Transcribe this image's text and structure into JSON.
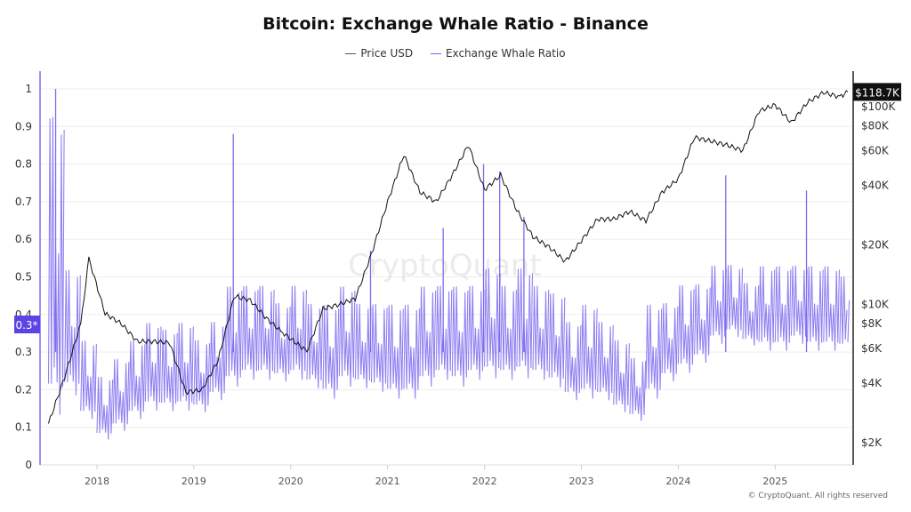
{
  "chart_data": {
    "type": "line",
    "title": "Bitcoin: Exchange Whale Ratio - Binance",
    "legend": [
      "Price USD",
      "Exchange Whale Ratio"
    ],
    "legend_placement": "top-center",
    "grid": true,
    "colors": {
      "price": "#111111",
      "whale": "#7b6cf0",
      "whale_label_bg": "#5b43e6",
      "price_label_bg": "#111111"
    },
    "x_ticks": [
      "2018",
      "2019",
      "2020",
      "2021",
      "2022",
      "2023",
      "2024",
      "2025"
    ],
    "y_left": {
      "ticks": [
        "0",
        "0.1",
        "0.2",
        "0.3",
        "0.4",
        "0.5",
        "0.6",
        "0.7",
        "0.8",
        "0.9",
        "1"
      ],
      "range": [
        0,
        1
      ],
      "current_label": "0.3*"
    },
    "y_right": {
      "scale": "log",
      "ticks": [
        {
          "label": "$2K",
          "value": 2000
        },
        {
          "label": "$4K",
          "value": 4000
        },
        {
          "label": "$6K",
          "value": 6000
        },
        {
          "label": "$8K",
          "value": 8000
        },
        {
          "label": "$10K",
          "value": 10000
        },
        {
          "label": "$20K",
          "value": 20000
        },
        {
          "label": "$40K",
          "value": 40000
        },
        {
          "label": "$60K",
          "value": 60000
        },
        {
          "label": "$80K",
          "value": 80000
        },
        {
          "label": "$100K",
          "value": 100000
        }
      ],
      "current_label": "$118.7K"
    },
    "price_series": {
      "name": "Price USD",
      "points": [
        [
          "2017-07",
          2500
        ],
        [
          "2017-09",
          4300
        ],
        [
          "2017-11",
          8000
        ],
        [
          "2017-12",
          17000
        ],
        [
          "2018-02",
          9000
        ],
        [
          "2018-04",
          8000
        ],
        [
          "2018-06",
          6500
        ],
        [
          "2018-08",
          6500
        ],
        [
          "2018-10",
          6400
        ],
        [
          "2018-12",
          3600
        ],
        [
          "2019-02",
          3700
        ],
        [
          "2019-04",
          5200
        ],
        [
          "2019-06",
          11000
        ],
        [
          "2019-08",
          10500
        ],
        [
          "2019-10",
          8500
        ],
        [
          "2019-12",
          7200
        ],
        [
          "2020-03",
          5800
        ],
        [
          "2020-05",
          9500
        ],
        [
          "2020-07",
          10000
        ],
        [
          "2020-09",
          10700
        ],
        [
          "2020-11",
          18000
        ],
        [
          "2021-01",
          33000
        ],
        [
          "2021-03",
          57000
        ],
        [
          "2021-05",
          37000
        ],
        [
          "2021-07",
          33000
        ],
        [
          "2021-09",
          45000
        ],
        [
          "2021-11",
          64000
        ],
        [
          "2022-01",
          38000
        ],
        [
          "2022-03",
          45000
        ],
        [
          "2022-05",
          30000
        ],
        [
          "2022-07",
          22000
        ],
        [
          "2022-09",
          19500
        ],
        [
          "2022-11",
          16500
        ],
        [
          "2023-01",
          21000
        ],
        [
          "2023-03",
          27000
        ],
        [
          "2023-05",
          27000
        ],
        [
          "2023-07",
          29500
        ],
        [
          "2023-09",
          26500
        ],
        [
          "2023-11",
          37000
        ],
        [
          "2024-01",
          43000
        ],
        [
          "2024-03",
          70000
        ],
        [
          "2024-05",
          67000
        ],
        [
          "2024-07",
          64000
        ],
        [
          "2024-09",
          60000
        ],
        [
          "2024-11",
          95000
        ],
        [
          "2025-01",
          102000
        ],
        [
          "2025-03",
          83000
        ],
        [
          "2025-05",
          105000
        ],
        [
          "2025-07",
          118000
        ],
        [
          "2025-09",
          112000
        ],
        [
          "2025-10",
          118700
        ]
      ]
    },
    "whale_series": {
      "name": "Exchange Whale Ratio",
      "ranges": [
        [
          "2017-07",
          0.05,
          1.0
        ],
        [
          "2017-09",
          0.15,
          0.55
        ],
        [
          "2017-11",
          0.1,
          0.35
        ],
        [
          "2018-01",
          0.05,
          0.25
        ],
        [
          "2018-03",
          0.07,
          0.3
        ],
        [
          "2018-05",
          0.1,
          0.35
        ],
        [
          "2018-07",
          0.12,
          0.4
        ],
        [
          "2018-09",
          0.12,
          0.38
        ],
        [
          "2018-11",
          0.12,
          0.4
        ],
        [
          "2019-01",
          0.12,
          0.35
        ],
        [
          "2019-03",
          0.15,
          0.4
        ],
        [
          "2019-05",
          0.18,
          0.5
        ],
        [
          "2019-07",
          0.2,
          0.5
        ],
        [
          "2019-09",
          0.2,
          0.5
        ],
        [
          "2019-11",
          0.2,
          0.45
        ],
        [
          "2020-01",
          0.2,
          0.5
        ],
        [
          "2020-03",
          0.18,
          0.45
        ],
        [
          "2020-05",
          0.15,
          0.45
        ],
        [
          "2020-07",
          0.18,
          0.5
        ],
        [
          "2020-09",
          0.18,
          0.45
        ],
        [
          "2020-11",
          0.17,
          0.45
        ],
        [
          "2021-01",
          0.15,
          0.45
        ],
        [
          "2021-03",
          0.15,
          0.45
        ],
        [
          "2021-05",
          0.18,
          0.5
        ],
        [
          "2021-07",
          0.2,
          0.5
        ],
        [
          "2021-09",
          0.18,
          0.5
        ],
        [
          "2021-11",
          0.2,
          0.5
        ],
        [
          "2022-01",
          0.2,
          0.55
        ],
        [
          "2022-03",
          0.2,
          0.5
        ],
        [
          "2022-05",
          0.2,
          0.55
        ],
        [
          "2022-07",
          0.2,
          0.5
        ],
        [
          "2022-09",
          0.18,
          0.48
        ],
        [
          "2022-11",
          0.15,
          0.4
        ],
        [
          "2023-01",
          0.15,
          0.45
        ],
        [
          "2023-03",
          0.15,
          0.4
        ],
        [
          "2023-05",
          0.12,
          0.35
        ],
        [
          "2023-07",
          0.1,
          0.3
        ],
        [
          "2023-09",
          0.15,
          0.45
        ],
        [
          "2023-11",
          0.2,
          0.45
        ],
        [
          "2024-01",
          0.22,
          0.5
        ],
        [
          "2024-03",
          0.25,
          0.5
        ],
        [
          "2024-05",
          0.3,
          0.55
        ],
        [
          "2024-07",
          0.32,
          0.55
        ],
        [
          "2024-09",
          0.3,
          0.5
        ],
        [
          "2024-11",
          0.28,
          0.55
        ],
        [
          "2025-01",
          0.28,
          0.55
        ],
        [
          "2025-03",
          0.3,
          0.55
        ],
        [
          "2025-05",
          0.28,
          0.55
        ],
        [
          "2025-07",
          0.28,
          0.55
        ],
        [
          "2025-09",
          0.28,
          0.52
        ],
        [
          "2025-10",
          0.3,
          0.45
        ]
      ],
      "spikes": [
        [
          "2017-07",
          1.0
        ],
        [
          "2019-05",
          0.88
        ],
        [
          "2020-10",
          0.57
        ],
        [
          "2021-07",
          0.63
        ],
        [
          "2021-12",
          0.8
        ],
        [
          "2022-02",
          0.78
        ],
        [
          "2022-05",
          0.66
        ],
        [
          "2024-06",
          0.77
        ],
        [
          "2025-04",
          0.73
        ]
      ]
    }
  },
  "watermark": "CryptoQuant",
  "footer": "© CryptoQuant. All rights reserved"
}
